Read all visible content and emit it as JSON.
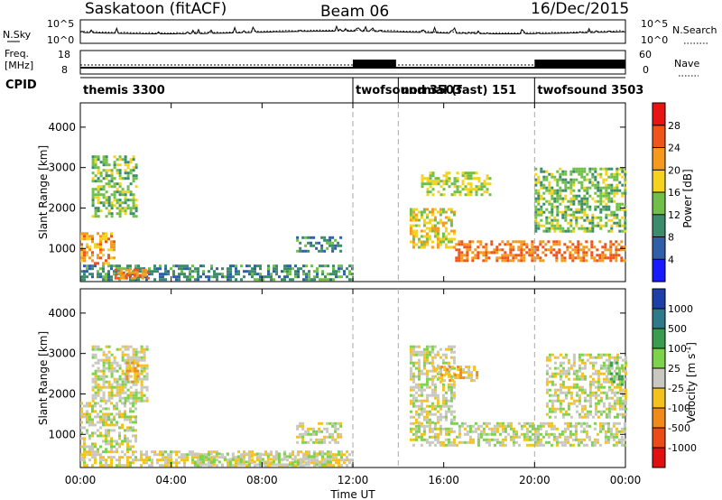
{
  "header": {
    "station": "Saskatoon (fitACF)",
    "beam": "Beam 06",
    "date": "16/Dec/2015"
  },
  "top_panels": {
    "nsky_label": "N.Sky",
    "nsky_ticks": [
      "10^5",
      "10^0"
    ],
    "nsearch_label": "N.Search",
    "nsearch_ticks": [
      "10^5",
      "10^0"
    ],
    "freq_label": "Freq.",
    "freq_unit": "[MHz]",
    "freq_ticks": [
      "18",
      "8"
    ],
    "nave_label": "Nave",
    "nave_ticks": [
      "60",
      "0"
    ],
    "cpid_label": "CPID"
  },
  "cpid_segments": [
    {
      "label": "themis 3300",
      "start": 0,
      "end": 12
    },
    {
      "label": "twofsound 3503",
      "start": 12,
      "end": 14
    },
    {
      "label": "normal (fast) 151",
      "start": 14,
      "end": 20
    },
    {
      "label": "twofsound 3503",
      "start": 20,
      "end": 24
    }
  ],
  "time_axis": {
    "label": "Time UT",
    "ticks": [
      "00:00",
      "04:00",
      "08:00",
      "12:00",
      "16:00",
      "20:00",
      "00:00"
    ]
  },
  "range_axis": {
    "label": "Slant Range [km]",
    "ticks": [
      "1000",
      "2000",
      "3000",
      "4000"
    ]
  },
  "power_colorbar": {
    "label": "Power [dB]",
    "ticks": [
      "4",
      "8",
      "12",
      "16",
      "20",
      "24",
      "28"
    ],
    "colors": [
      "#1a1aff",
      "#2e5fa8",
      "#3a8c6c",
      "#6fbf4a",
      "#f4d21e",
      "#f59a1c",
      "#f0541a",
      "#e81414"
    ]
  },
  "velocity_colorbar": {
    "label": "Velocity [m s",
    "label_sup": "-1",
    "label_end": "]",
    "ticks": [
      "1000",
      "500",
      "100",
      "25",
      "-25",
      "-100",
      "-500",
      "-1000"
    ],
    "colors": [
      "#1d3fa8",
      "#2f7a8a",
      "#3a9c4e",
      "#7cd24a",
      "#c8c8c0",
      "#f4c21c",
      "#f08a1a",
      "#ec4a16",
      "#e01010"
    ]
  },
  "chart_data": [
    {
      "type": "heatmap",
      "title": "Power",
      "xlabel": "Time UT",
      "ylabel": "Slant Range [km]",
      "xlim": [
        0,
        24
      ],
      "ylim": [
        180,
        4600
      ],
      "zlabel": "Power [dB]",
      "zlim": [
        0,
        32
      ],
      "regions": [
        {
          "t0": 0.0,
          "t1": 12.0,
          "r0": 200,
          "r1": 600,
          "z": 10
        },
        {
          "t0": 0.0,
          "t1": 1.5,
          "r0": 600,
          "r1": 1400,
          "z": 22
        },
        {
          "t0": 1.5,
          "t1": 3.0,
          "r0": 250,
          "r1": 500,
          "z": 24
        },
        {
          "t0": 0.5,
          "t1": 2.5,
          "r0": 1800,
          "r1": 3300,
          "z": 14
        },
        {
          "t0": 9.5,
          "t1": 11.5,
          "r0": 900,
          "r1": 1300,
          "z": 9
        },
        {
          "t0": 14.5,
          "t1": 16.5,
          "r0": 1000,
          "r1": 2000,
          "z": 18
        },
        {
          "t0": 16.5,
          "t1": 24.0,
          "r0": 700,
          "r1": 1200,
          "z": 24
        },
        {
          "t0": 15.0,
          "t1": 18.0,
          "r0": 2300,
          "r1": 2900,
          "z": 16
        },
        {
          "t0": 20.0,
          "t1": 24.0,
          "r0": 1400,
          "r1": 3000,
          "z": 14
        }
      ]
    },
    {
      "type": "heatmap",
      "title": "Velocity",
      "xlabel": "Time UT",
      "ylabel": "Slant Range [km]",
      "xlim": [
        0,
        24
      ],
      "ylim": [
        180,
        4600
      ],
      "zlabel": "Velocity [m s-1]",
      "zlim": [
        -1000,
        1000
      ],
      "regions": [
        {
          "t0": 0.0,
          "t1": 12.0,
          "r0": 200,
          "r1": 600,
          "z": -80
        },
        {
          "t0": 0.0,
          "t1": 2.5,
          "r0": 600,
          "r1": 1800,
          "z": 0
        },
        {
          "t0": 0.5,
          "t1": 3.0,
          "r0": 1800,
          "r1": 3200,
          "z": 0
        },
        {
          "t0": 2.0,
          "t1": 2.5,
          "r0": 2300,
          "r1": 2800,
          "z": -300
        },
        {
          "t0": 5.0,
          "t1": 11.0,
          "r0": 250,
          "r1": 550,
          "z": 60
        },
        {
          "t0": 9.5,
          "t1": 11.5,
          "r0": 800,
          "r1": 1300,
          "z": 0
        },
        {
          "t0": 14.5,
          "t1": 24.0,
          "r0": 700,
          "r1": 1300,
          "z": 0
        },
        {
          "t0": 14.5,
          "t1": 16.5,
          "r0": 1300,
          "r1": 3200,
          "z": 0
        },
        {
          "t0": 15.5,
          "t1": 17.5,
          "r0": 2300,
          "r1": 2700,
          "z": -200
        },
        {
          "t0": 20.5,
          "t1": 24.0,
          "r0": 1400,
          "r1": 3000,
          "z": 0
        },
        {
          "t0": 23.2,
          "t1": 23.8,
          "r0": 2200,
          "r1": 2800,
          "z": 300
        }
      ]
    }
  ]
}
